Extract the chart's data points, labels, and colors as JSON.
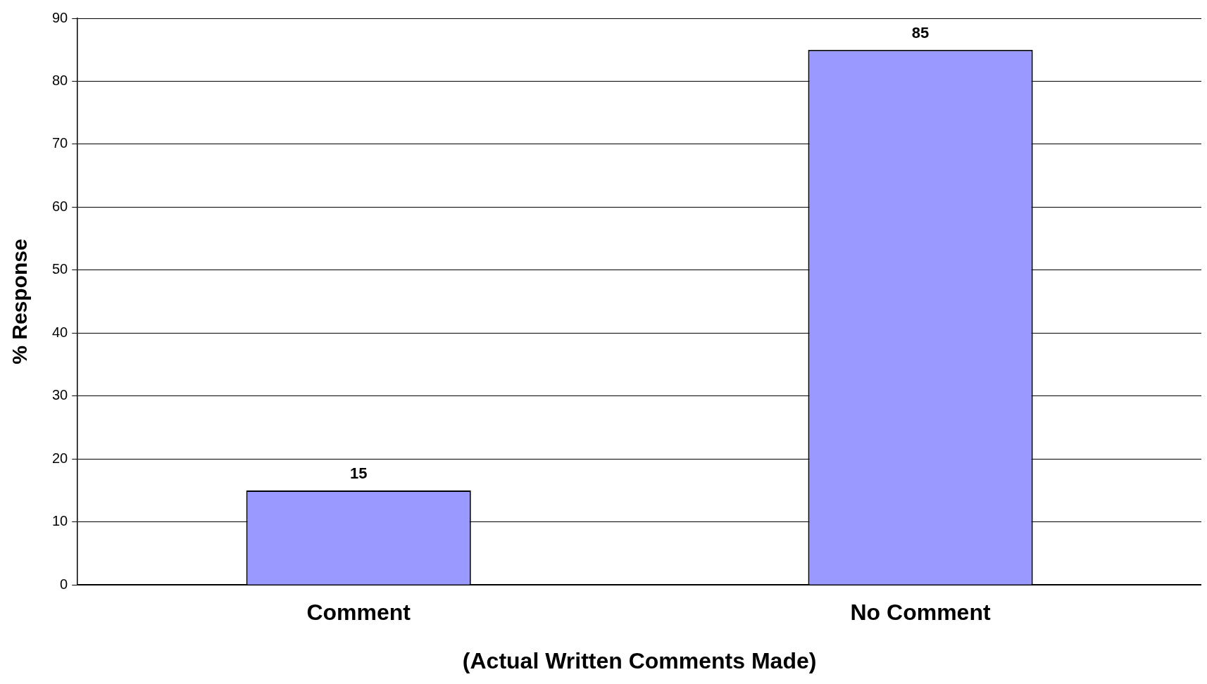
{
  "chart_data": {
    "type": "bar",
    "xlabel": "(Actual Written Comments Made)",
    "ylabel": "% Response",
    "categories": [
      "Comment",
      "No Comment"
    ],
    "values": [
      15,
      85
    ],
    "color": "#9999ff",
    "ylim": [
      0,
      90
    ],
    "yticks": [
      0,
      10,
      20,
      30,
      40,
      50,
      60,
      70,
      80,
      90
    ],
    "grid": "y",
    "data_labels": true,
    "legend": false
  }
}
